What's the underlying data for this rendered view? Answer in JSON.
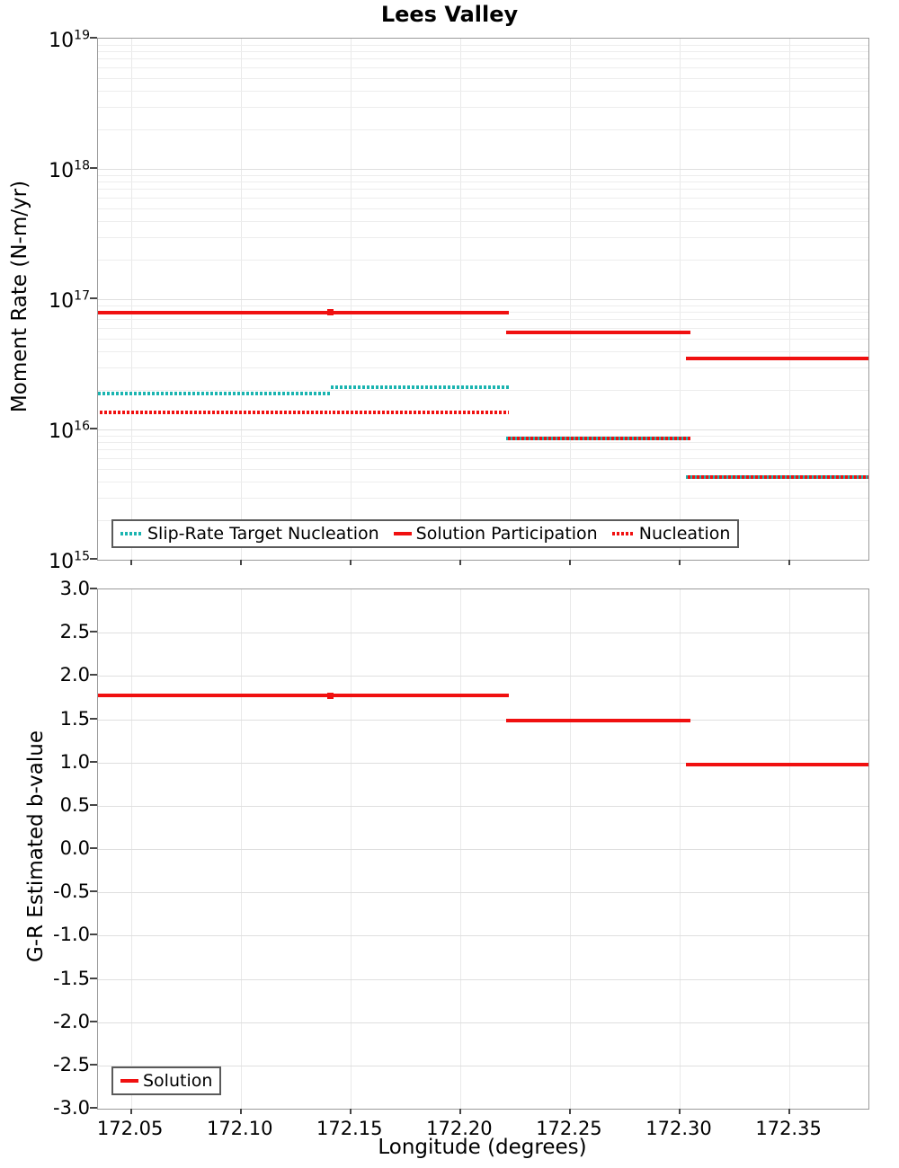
{
  "title": "Lees Valley",
  "colors": {
    "solution_red": "#f01010",
    "slip_rate_teal": "#1ab4b0",
    "grid_minor": "#ededed",
    "grid_major": "#dfdfdf",
    "grid_vertical": "#e9e9e9",
    "frame_gray": "#9b9b9b",
    "legend_border": "#5a5a5a",
    "tick_color": "#444444"
  },
  "top_chart": {
    "ylabel": "Moment Rate (N-m/yr)",
    "ytick_labels": [
      {
        "base": "10",
        "exp": "19"
      },
      {
        "base": "10",
        "exp": "18"
      },
      {
        "base": "10",
        "exp": "17"
      },
      {
        "base": "10",
        "exp": "16"
      },
      {
        "base": "10",
        "exp": "15"
      }
    ],
    "legend": [
      {
        "label": "Slip-Rate Target Nucleation",
        "swatch": "dot-teal"
      },
      {
        "label": "Solution Participation",
        "swatch": "solid-red"
      },
      {
        "label": "Nucleation",
        "swatch": "dot-red"
      }
    ]
  },
  "bottom_chart": {
    "ylabel": "G-R Estimated b-value",
    "xlabel": "Longitude (degrees)",
    "ytick_labels": [
      "3.0",
      "2.5",
      "2.0",
      "1.5",
      "1.0",
      "0.5",
      "0.0",
      "-0.5",
      "-1.0",
      "-1.5",
      "-2.0",
      "-2.5",
      "-3.0"
    ],
    "legend": [
      {
        "label": "Solution",
        "swatch": "solid-red"
      }
    ]
  },
  "x_axis": {
    "range": [
      172.035,
      172.386
    ],
    "tick_values": [
      172.05,
      172.1,
      172.15,
      172.2,
      172.25,
      172.3,
      172.35
    ],
    "tick_labels": [
      "172.05",
      "172.10",
      "172.15",
      "172.20",
      "172.25",
      "172.30",
      "172.35"
    ]
  },
  "chart_data": [
    {
      "type": "line",
      "title": "Lees Valley",
      "ylabel": "Moment Rate (N-m/yr)",
      "yscale": "log",
      "ylim": [
        1000000000000000.0,
        1e+19
      ],
      "xlim": [
        172.035,
        172.386
      ],
      "grid": true,
      "legend_position": "lower left",
      "series": [
        {
          "name": "Slip-Rate Target Nucleation",
          "color": "#1ab4b0",
          "style": "dotted",
          "segments": [
            {
              "x": [
                172.035,
                172.141
              ],
              "y": 1.9e+16
            },
            {
              "x": [
                172.141,
                172.222
              ],
              "y": 2.1e+16
            },
            {
              "x": [
                172.221,
                172.305
              ],
              "y": 8500000000000000.0
            },
            {
              "x": [
                172.303,
                172.386
              ],
              "y": 4300000000000000.0
            }
          ]
        },
        {
          "name": "Nucleation",
          "color": "#f01010",
          "style": "dotted",
          "segments": [
            {
              "x": [
                172.035,
                172.141
              ],
              "y": 1.35e+16
            },
            {
              "x": [
                172.141,
                172.222
              ],
              "y": 1.35e+16
            },
            {
              "x": [
                172.221,
                172.305
              ],
              "y": 8500000000000000.0
            },
            {
              "x": [
                172.303,
                172.386
              ],
              "y": 4300000000000000.0
            }
          ]
        },
        {
          "name": "Solution Participation",
          "color": "#f01010",
          "style": "solid",
          "segments": [
            {
              "x": [
                172.035,
                172.141
              ],
              "y": 7.9e+16
            },
            {
              "x": [
                172.141,
                172.222
              ],
              "y": 7.9e+16
            },
            {
              "x": [
                172.221,
                172.305
              ],
              "y": 5.6e+16
            },
            {
              "x": [
                172.303,
                172.386
              ],
              "y": 3.5e+16
            }
          ],
          "junction_markers": [
            {
              "x": 172.141,
              "y": 7.9e+16
            }
          ]
        }
      ]
    },
    {
      "type": "line",
      "ylabel": "G-R Estimated b-value",
      "xlabel": "Longitude (degrees)",
      "yscale": "linear",
      "ylim": [
        -3.0,
        3.0
      ],
      "ytick_step": 0.5,
      "xlim": [
        172.035,
        172.386
      ],
      "grid": true,
      "legend_position": "lower left",
      "series": [
        {
          "name": "Solution",
          "color": "#f01010",
          "style": "solid",
          "segments": [
            {
              "x": [
                172.035,
                172.141
              ],
              "y": 1.77
            },
            {
              "x": [
                172.141,
                172.222
              ],
              "y": 1.77
            },
            {
              "x": [
                172.221,
                172.305
              ],
              "y": 1.48
            },
            {
              "x": [
                172.303,
                172.386
              ],
              "y": 0.98
            }
          ],
          "junction_markers": [
            {
              "x": 172.141,
              "y": 1.77
            }
          ]
        }
      ]
    }
  ]
}
